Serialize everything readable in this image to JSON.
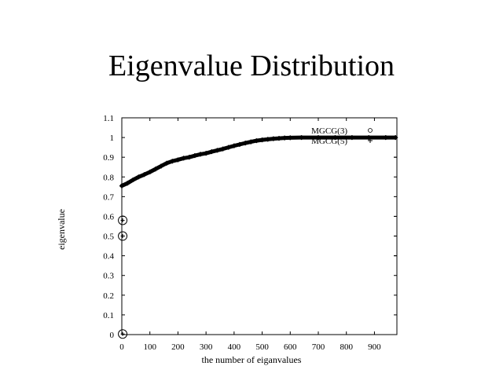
{
  "slide": {
    "title": "Eigenvalue Distribution"
  },
  "chart_data": {
    "type": "scatter",
    "title": "Eigenvalue Distribution",
    "xlabel": "the number of eiganvalues",
    "ylabel": "eigenvalue",
    "xlim": [
      0,
      980
    ],
    "ylim": [
      0,
      1.1
    ],
    "xticks": [
      0,
      100,
      200,
      300,
      400,
      500,
      600,
      700,
      800,
      900
    ],
    "yticks": [
      0,
      0.1,
      0.2,
      0.3,
      0.4,
      0.5,
      0.6,
      0.7,
      0.8,
      0.9,
      1,
      1.1
    ],
    "grid": false,
    "legend_position": "top-right",
    "series": [
      {
        "name": "MGCG(3)",
        "marker": "circle",
        "color": "#000000",
        "points": [
          [
            3,
            0.003
          ],
          [
            3,
            0.5
          ],
          [
            3,
            0.58
          ]
        ]
      },
      {
        "name": "MGCG(5)",
        "marker": "plus",
        "color": "#000000",
        "points": [
          [
            0,
            0.755
          ],
          [
            20,
            0.768
          ],
          [
            40,
            0.785
          ],
          [
            60,
            0.8
          ],
          [
            80,
            0.812
          ],
          [
            100,
            0.825
          ],
          [
            120,
            0.84
          ],
          [
            140,
            0.855
          ],
          [
            160,
            0.87
          ],
          [
            180,
            0.88
          ],
          [
            200,
            0.887
          ],
          [
            220,
            0.895
          ],
          [
            240,
            0.9
          ],
          [
            260,
            0.908
          ],
          [
            280,
            0.915
          ],
          [
            300,
            0.92
          ],
          [
            320,
            0.928
          ],
          [
            340,
            0.935
          ],
          [
            360,
            0.942
          ],
          [
            380,
            0.95
          ],
          [
            400,
            0.958
          ],
          [
            420,
            0.965
          ],
          [
            440,
            0.972
          ],
          [
            460,
            0.978
          ],
          [
            480,
            0.984
          ],
          [
            500,
            0.988
          ],
          [
            520,
            0.991
          ],
          [
            540,
            0.994
          ],
          [
            560,
            0.996
          ],
          [
            580,
            0.998
          ],
          [
            600,
            0.999
          ],
          [
            640,
            1.0
          ],
          [
            700,
            1.0
          ],
          [
            760,
            1.0
          ],
          [
            820,
            1.0
          ],
          [
            880,
            1.0
          ],
          [
            940,
            1.0
          ],
          [
            975,
            1.0
          ]
        ]
      }
    ]
  }
}
